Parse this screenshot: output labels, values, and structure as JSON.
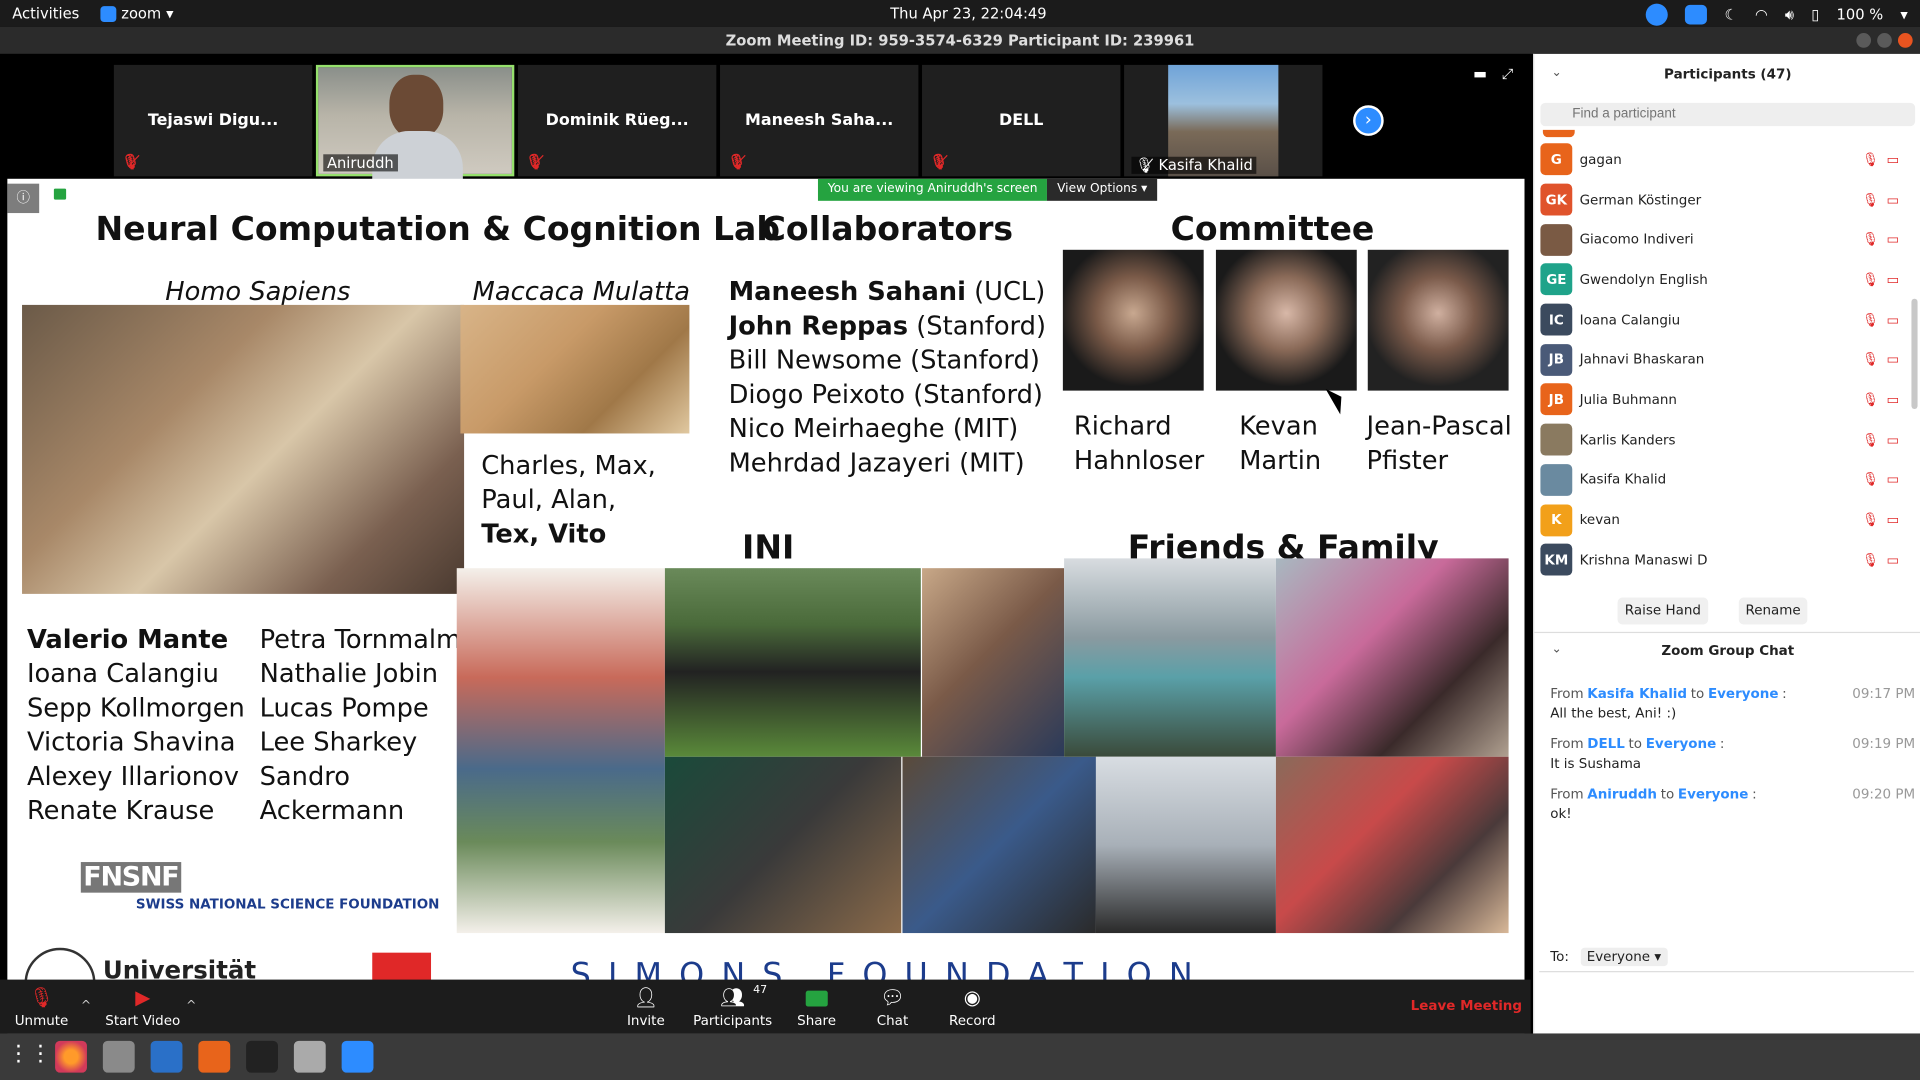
{
  "system": {
    "activities": "Activities",
    "app_name": "zoom",
    "clock": "Thu Apr 23, 22:04:49",
    "battery": "100 %"
  },
  "window": {
    "title": "Zoom Meeting ID: 959-3574-6329 Participant ID: 239961"
  },
  "thumbnails": [
    {
      "name": "Tejaswi Digu...",
      "muted": true
    },
    {
      "name": "Aniruddh",
      "muted": false,
      "video": true,
      "active": true
    },
    {
      "name": "Dominik Rüeg...",
      "muted": true
    },
    {
      "name": "Maneesh Saha...",
      "muted": true
    },
    {
      "name": "DELL",
      "muted": true
    },
    {
      "name": "Kasifa Khalid",
      "muted": true,
      "video": true
    }
  ],
  "share_banner": {
    "viewing": "You are viewing Aniruddh's screen",
    "view_options": "View Options"
  },
  "slide": {
    "lab_title": "Neural Computation & Cognition Lab",
    "homo": "Homo Sapiens",
    "maccaca": "Maccaca Mulatta",
    "monkeys_line1": "Charles, Max,",
    "monkeys_line2": "Paul, Alan,",
    "monkeys_line3": "Tex, Vito",
    "lab_members_left": [
      "Valerio Mante",
      "Ioana Calangiu",
      "Sepp Kollmorgen",
      "Victoria Shavina",
      "Alexey Illarionov",
      "Renate Krause"
    ],
    "lab_members_right": [
      "Petra Tornmalm",
      "Nathalie Jobin",
      "Lucas Pompe",
      "Lee Sharkey",
      "Sandro",
      "Ackermann"
    ],
    "snf_short": "FNSNF",
    "snf_long": "SWISS NATIONAL SCIENCE FOUNDATION",
    "uni": "Universität",
    "simons": "SIMONS FOUNDATION",
    "collab_title": "Collaborators",
    "collaborators": [
      {
        "name": "Maneesh Sahani",
        "inst": " (UCL)"
      },
      {
        "name": "John Reppas",
        "inst": " (Stanford)"
      },
      {
        "name": "Bill Newsome",
        "inst": " (Stanford)"
      },
      {
        "name": "Diogo Peixoto",
        "inst": " (Stanford)"
      },
      {
        "name": "Nico Meirhaeghe",
        "inst": " (MIT)"
      },
      {
        "name": "Mehrdad Jazayeri",
        "inst": " (MIT)"
      }
    ],
    "committee_title": "Committee",
    "committee": [
      {
        "first": "Richard",
        "last": "Hahnloser"
      },
      {
        "first": "Kevan",
        "last": "Martin"
      },
      {
        "first": "Jean-Pascal",
        "last": "Pfister"
      }
    ],
    "ini_title": "INI",
    "friends_title": "Friends & Family"
  },
  "toolbar": {
    "unmute": "Unmute",
    "start_video": "Start Video",
    "invite": "Invite",
    "participants": "Participants",
    "participants_count": "47",
    "share": "Share",
    "chat": "Chat",
    "record": "Record",
    "leave": "Leave Meeting"
  },
  "participants_panel": {
    "title": "Participants (47)",
    "search_placeholder": "Find a participant",
    "list": [
      {
        "initials": "G",
        "name": "gagan",
        "color": "#e8641b"
      },
      {
        "initials": "GK",
        "name": "German Köstinger",
        "color": "#e0532b"
      },
      {
        "initials": "",
        "name": "Giacomo Indiveri",
        "color": "#7a5a44"
      },
      {
        "initials": "GE",
        "name": "Gwendolyn English",
        "color": "#1fa38a"
      },
      {
        "initials": "IC",
        "name": "Ioana Calangiu",
        "color": "#3b4a5e"
      },
      {
        "initials": "JB",
        "name": "Jahnavi Bhaskaran",
        "color": "#4a5a78"
      },
      {
        "initials": "JB",
        "name": "Julia Buhmann",
        "color": "#e8641b"
      },
      {
        "initials": "",
        "name": "Karlis Kanders",
        "color": "#8a7a60"
      },
      {
        "initials": "",
        "name": "Kasifa Khalid",
        "color": "#6a8aa0"
      },
      {
        "initials": "K",
        "name": "kevan",
        "color": "#f2a01a"
      },
      {
        "initials": "KM",
        "name": "Krishna Manaswi D",
        "color": "#3b4a5e"
      }
    ],
    "raise_hand": "Raise Hand",
    "rename": "Rename"
  },
  "chat_panel": {
    "title": "Zoom Group Chat",
    "messages": [
      {
        "from": "Kasifa Khalid",
        "to": "Everyone",
        "time": "09:17 PM",
        "text": "All the best, Ani! :)"
      },
      {
        "from": "DELL",
        "to": "Everyone",
        "time": "09:19 PM",
        "text": "It is Sushama"
      },
      {
        "from": "Aniruddh",
        "to": "Everyone",
        "time": "09:20 PM",
        "text": "ok!"
      }
    ],
    "to_label": "To:",
    "to_value": "Everyone",
    "from_word": "From",
    "to_word": "to"
  },
  "colors": {
    "accent": "#2d8cff",
    "danger": "#e02828",
    "share_green": "#25a340"
  }
}
